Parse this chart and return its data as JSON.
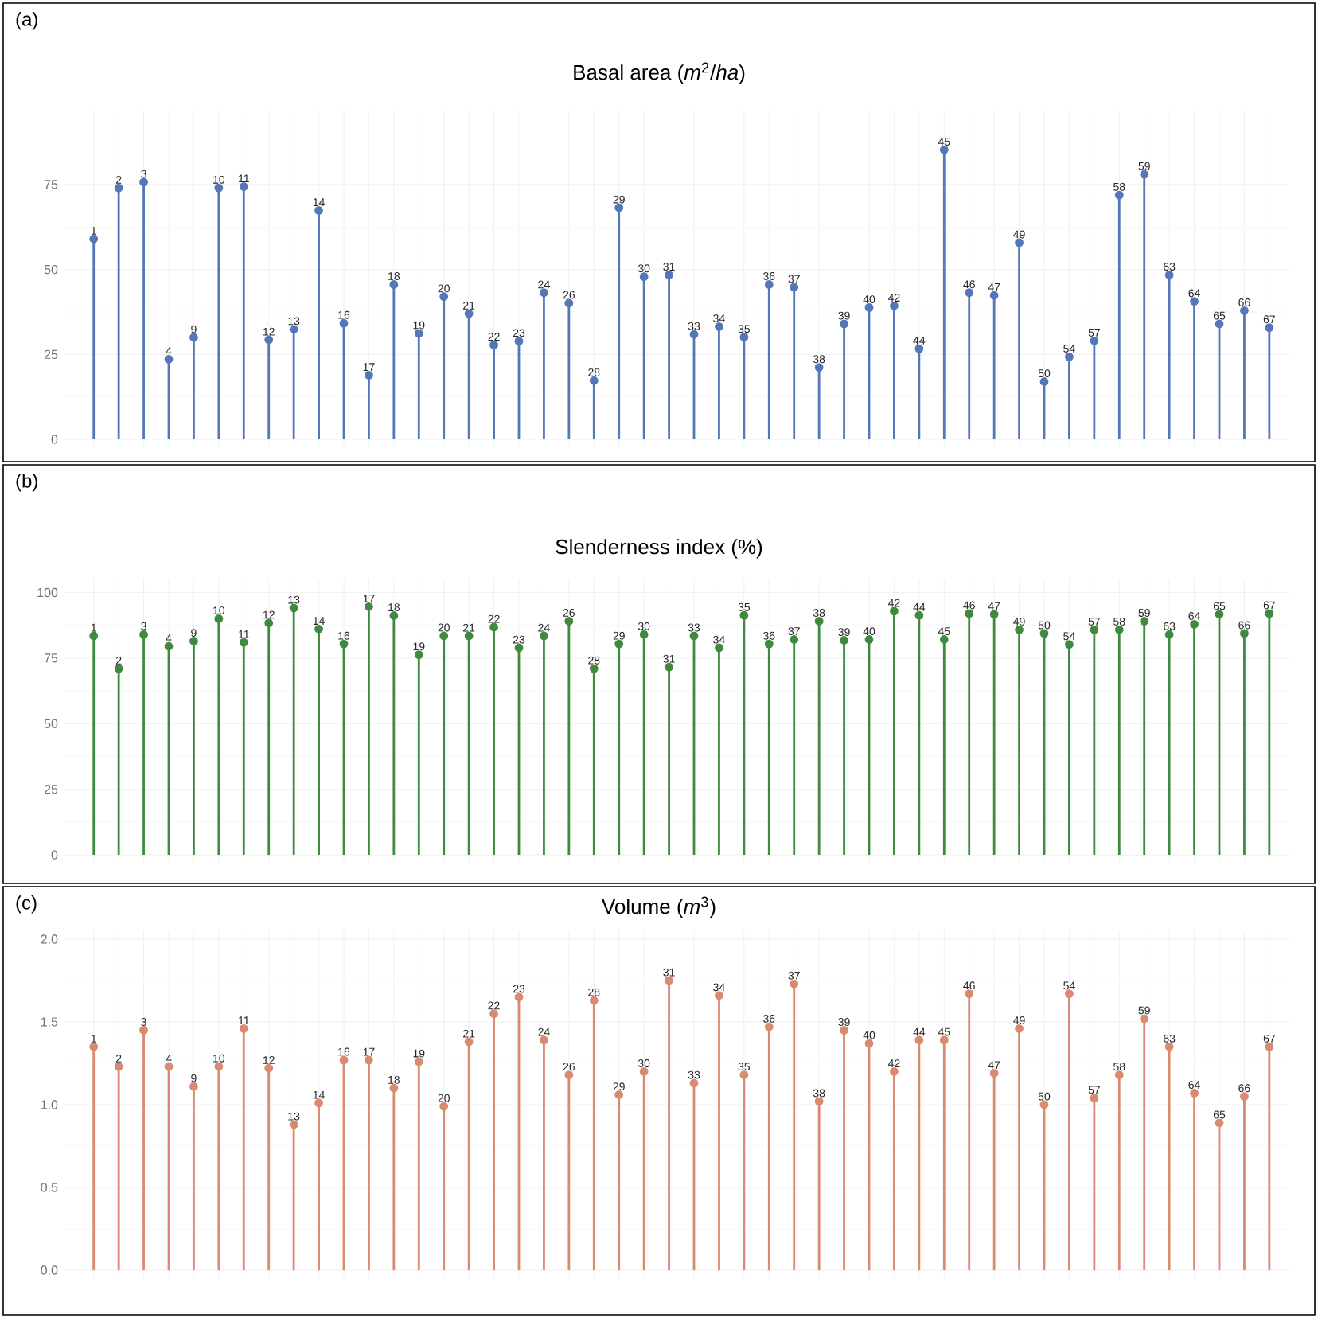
{
  "chart_data": [
    {
      "type": "lollipop",
      "title": "Basal area (*m*$^{2}$/*ha*)",
      "annotations": [
        "(a)"
      ],
      "color": "#5377b8",
      "marker": "circle",
      "grid": true,
      "tick_labels": "y",
      "ylim": [
        -2,
        97
      ],
      "yticks": [
        0,
        25,
        50,
        75
      ],
      "categories": [
        "1",
        "2",
        "3",
        "4",
        "9",
        "10",
        "11",
        "12",
        "13",
        "14",
        "16",
        "17",
        "18",
        "19",
        "20",
        "21",
        "22",
        "23",
        "24",
        "26",
        "28",
        "29",
        "30",
        "31",
        "33",
        "34",
        "35",
        "36",
        "37",
        "38",
        "39",
        "40",
        "42",
        "44",
        "45",
        "46",
        "47",
        "49",
        "50",
        "54",
        "57",
        "58",
        "59",
        "63",
        "64",
        "65",
        "66",
        "67"
      ],
      "values": [
        59,
        74,
        75.7,
        23.6,
        30,
        74,
        74.4,
        29.3,
        32.4,
        67.4,
        34.2,
        18.9,
        45.6,
        31.2,
        42,
        37,
        27.8,
        28.9,
        43.2,
        40.1,
        17.3,
        68.2,
        47.9,
        48.4,
        30.9,
        33.2,
        30.1,
        45.6,
        44.8,
        21.2,
        34,
        38.8,
        39.3,
        26.7,
        85.2,
        43.2,
        42.4,
        57.9,
        17,
        24.3,
        29,
        71.9,
        78,
        48.4,
        40.6,
        34,
        37.9,
        32.9
      ]
    },
    {
      "type": "lollipop",
      "title": "Slenderness index (%)",
      "annotations": [
        "(b)"
      ],
      "color": "#3f8a3f",
      "marker": "circle",
      "grid": true,
      "tick_labels": "y",
      "ylim": [
        -3,
        105
      ],
      "yticks": [
        0,
        25,
        50,
        75,
        100
      ],
      "categories": [
        "1",
        "2",
        "3",
        "4",
        "9",
        "10",
        "11",
        "12",
        "13",
        "14",
        "16",
        "17",
        "18",
        "19",
        "20",
        "21",
        "22",
        "23",
        "24",
        "26",
        "28",
        "29",
        "30",
        "31",
        "33",
        "34",
        "35",
        "36",
        "37",
        "38",
        "39",
        "40",
        "42",
        "44",
        "45",
        "46",
        "47",
        "49",
        "50",
        "54",
        "57",
        "58",
        "59",
        "63",
        "64",
        "65",
        "66",
        "67"
      ],
      "values": [
        83.5,
        71,
        84,
        79.5,
        81.5,
        90,
        81,
        88.4,
        94.1,
        86.1,
        80.4,
        94.6,
        91.2,
        76.3,
        83.5,
        83.5,
        86.8,
        78.9,
        83.5,
        89.1,
        71,
        80.4,
        84,
        71.6,
        83.5,
        78.9,
        91.3,
        80.4,
        82.1,
        89.1,
        81.8,
        82.1,
        92.9,
        91.3,
        82.1,
        92,
        91.7,
        85.8,
        84.4,
        80.2,
        85.8,
        85.8,
        89.1,
        84,
        87.9,
        91.7,
        84.4,
        92
      ]
    },
    {
      "type": "lollipop",
      "title": "Volume (*m*$^{3}$)",
      "annotations": [
        "(c)"
      ],
      "color": "#d98a70",
      "marker": "circle",
      "grid": true,
      "tick_labels": "y",
      "ylim": [
        -0.05,
        2.05
      ],
      "yticks": [
        {
          "value": 0,
          "label": "0.0"
        },
        {
          "value": 0.5,
          "label": "0.5"
        },
        {
          "value": 1,
          "label": "1.0"
        },
        {
          "value": 1.5,
          "label": "1.5"
        },
        {
          "value": 2,
          "label": "2.0"
        }
      ],
      "categories": [
        "1",
        "2",
        "3",
        "4",
        "9",
        "10",
        "11",
        "12",
        "13",
        "14",
        "16",
        "17",
        "18",
        "19",
        "20",
        "21",
        "22",
        "23",
        "24",
        "26",
        "28",
        "29",
        "30",
        "31",
        "33",
        "34",
        "35",
        "36",
        "37",
        "38",
        "39",
        "40",
        "42",
        "44",
        "45",
        "46",
        "47",
        "49",
        "50",
        "54",
        "57",
        "58",
        "59",
        "63",
        "64",
        "65",
        "66",
        "67"
      ],
      "values": [
        1.35,
        1.23,
        1.45,
        1.23,
        1.11,
        1.23,
        1.46,
        1.22,
        0.88,
        1.01,
        1.27,
        1.27,
        1.1,
        1.26,
        0.99,
        1.38,
        1.55,
        1.65,
        1.39,
        1.18,
        1.63,
        1.06,
        1.2,
        1.75,
        1.13,
        1.66,
        1.18,
        1.47,
        1.73,
        1.02,
        1.45,
        1.37,
        1.2,
        1.39,
        1.39,
        1.67,
        1.19,
        1.46,
        1.0,
        1.67,
        1.04,
        1.18,
        1.52,
        1.35,
        1.07,
        0.89,
        1.05,
        1.35
      ]
    }
  ]
}
